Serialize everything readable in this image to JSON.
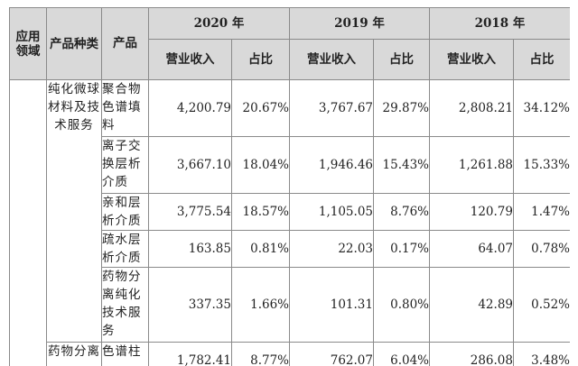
{
  "header": {
    "sector": "应用领域",
    "category": "产品种类",
    "product": "产品",
    "years": [
      "2020 年",
      "2019 年",
      "2018 年"
    ],
    "revenue": "营业收入",
    "share": "占比"
  },
  "groups": [
    {
      "category": "纯化微球材料及技术服务"
    },
    {
      "category": "药物分离"
    }
  ],
  "rows": [
    {
      "product": "聚合物色谱填料",
      "v2020": "4,200.79",
      "p2020": "20.67%",
      "v2019": "3,767.67",
      "p2019": "29.87%",
      "v2018": "2,808.21",
      "p2018": "34.12%"
    },
    {
      "product": "离子交换层析介质",
      "v2020": "3,667.10",
      "p2020": "18.04%",
      "v2019": "1,946.46",
      "p2019": "15.43%",
      "v2018": "1,261.88",
      "p2018": "15.33%"
    },
    {
      "product": "亲和层析介质",
      "v2020": "3,775.54",
      "p2020": "18.57%",
      "v2019": "1,105.05",
      "p2019": "8.76%",
      "v2018": "120.79",
      "p2018": "1.47%"
    },
    {
      "product": "疏水层析介质",
      "v2020": "163.85",
      "p2020": "0.81%",
      "v2019": "22.03",
      "p2019": "0.17%",
      "v2018": "64.07",
      "p2018": "0.78%"
    },
    {
      "product": "药物分离纯化技术服务",
      "v2020": "337.35",
      "p2020": "1.66%",
      "v2019": "101.31",
      "p2019": "0.80%",
      "v2018": "42.89",
      "p2018": "0.52%"
    },
    {
      "product": "色谱柱",
      "v2020": "1,782.41",
      "p2020": "8.77%",
      "v2019": "762.07",
      "p2019": "6.04%",
      "v2018": "286.08",
      "p2018": "3.48%"
    }
  ]
}
